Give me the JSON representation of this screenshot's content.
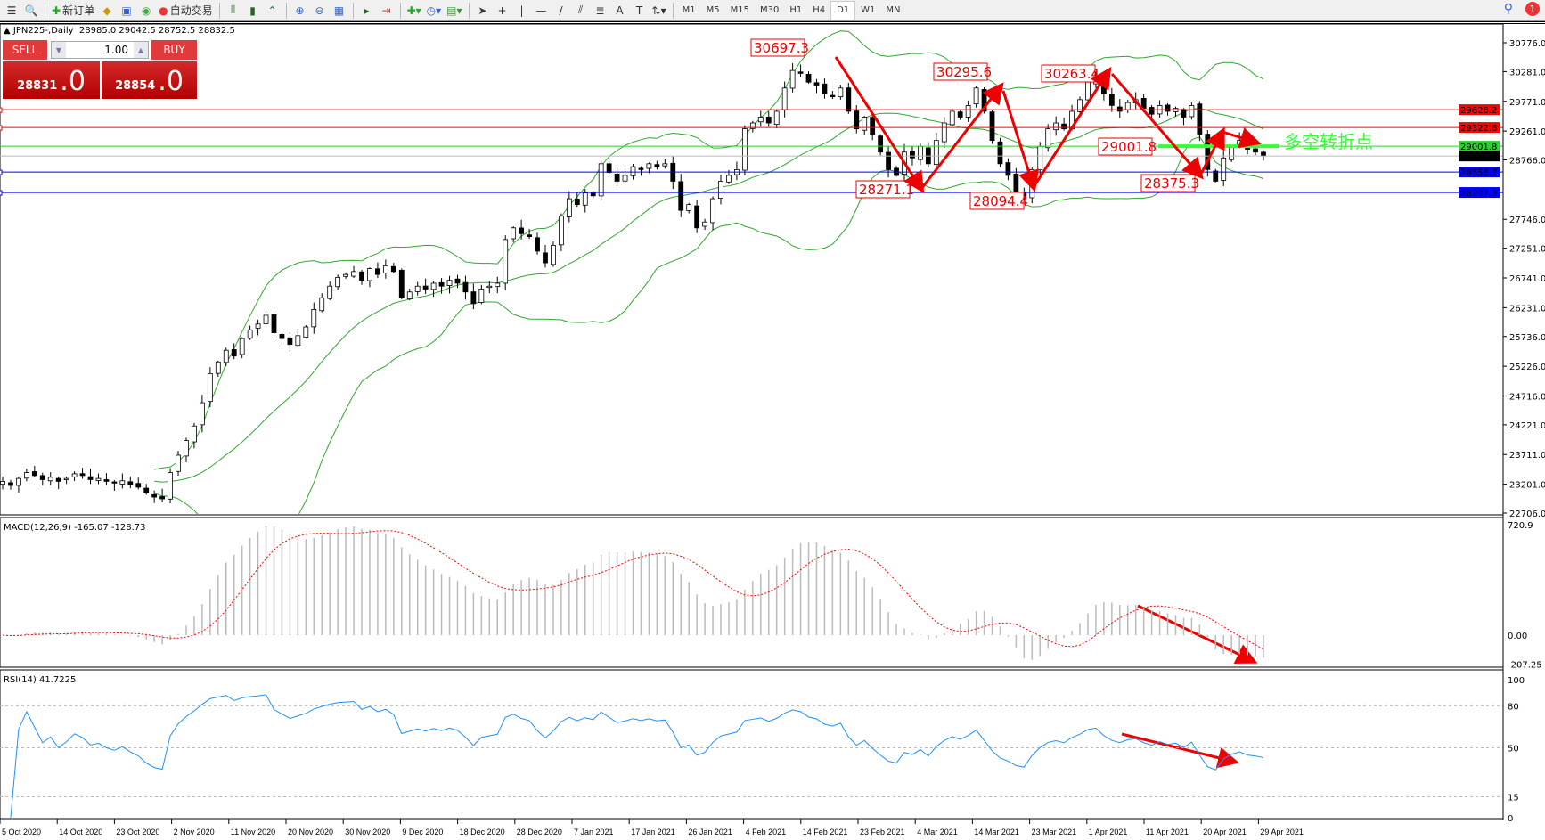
{
  "toolbar": {
    "new_order_label": "新订单",
    "auto_trading_label": "自动交易",
    "timeframes": [
      "M1",
      "M5",
      "M15",
      "M30",
      "H1",
      "H4",
      "D1",
      "W1",
      "MN"
    ],
    "active_timeframe": "D1",
    "notification_count": "1"
  },
  "chart_header": {
    "symbol": "JPN225-,Daily",
    "ohlc": "28985.0 29042.5 28752.5 28832.5"
  },
  "trade_panel": {
    "sell_label": "SELL",
    "buy_label": "BUY",
    "lot": "1.00",
    "sell_price_main": "28831",
    "sell_price_big": ".0",
    "buy_price_main": "28854",
    "buy_price_big": ".0"
  },
  "colors": {
    "bull": "#ffffff",
    "bear": "#000000",
    "bands": "#2ea82e",
    "sell": "#c80000",
    "macd_signal": "#ff0000",
    "rsi": "#1e90ff",
    "annotation": "#ff0000",
    "pivot_text": "#33ff33"
  },
  "chart_data": {
    "type": "candlestick",
    "price_axis_ticks": [
      "30776.0",
      "30281.0",
      "29771.0",
      "29261.0",
      "28766.0",
      "27746.0",
      "27251.0",
      "26741.0",
      "26231.0",
      "25736.0",
      "25226.0",
      "24716.0",
      "24221.0",
      "23711.0",
      "23201.0",
      "22706.0"
    ],
    "price_range": [
      22706,
      30776
    ],
    "date_ticks": [
      "5 Oct 2020",
      "14 Oct 2020",
      "23 Oct 2020",
      "2 Nov 2020",
      "11 Nov 2020",
      "20 Nov 2020",
      "30 Nov 2020",
      "9 Dec 2020",
      "18 Dec 2020",
      "28 Dec 2020",
      "7 Jan 2021",
      "17 Jan 2021",
      "26 Jan 2021",
      "4 Feb 2021",
      "14 Feb 2021",
      "23 Feb 2021",
      "4 Mar 2021",
      "14 Mar 2021",
      "23 Mar 2021",
      "1 Apr 2021",
      "11 Apr 2021",
      "20 Apr 2021",
      "29 Apr 2021"
    ],
    "close": [
      23250,
      23180,
      23300,
      23400,
      23350,
      23280,
      23320,
      23250,
      23300,
      23380,
      23350,
      23280,
      23300,
      23250,
      23220,
      23260,
      23200,
      23150,
      23050,
      22980,
      22950,
      23400,
      23700,
      23950,
      24200,
      24600,
      25100,
      25300,
      25500,
      25400,
      25700,
      25850,
      25950,
      26100,
      25800,
      25700,
      25600,
      25750,
      25900,
      26200,
      26400,
      26600,
      26750,
      26800,
      26850,
      26700,
      26900,
      26800,
      26950,
      26850,
      26400,
      26500,
      26600,
      26550,
      26650,
      26600,
      26700,
      26650,
      26500,
      26300,
      26550,
      26600,
      26650,
      27400,
      27600,
      27500,
      27450,
      27200,
      27000,
      27300,
      27800,
      28100,
      28000,
      28200,
      28150,
      28700,
      28550,
      28400,
      28500,
      28650,
      28600,
      28700,
      28650,
      28700,
      28400,
      27900,
      28000,
      27600,
      27700,
      28100,
      28400,
      28500,
      28600,
      29300,
      29400,
      29500,
      29400,
      29600,
      30000,
      30300,
      30250,
      30100,
      30050,
      29900,
      29850,
      30000,
      29600,
      29300,
      29500,
      29200,
      28900,
      28600,
      28500,
      28900,
      28800,
      29000,
      28700,
      29100,
      29400,
      29600,
      29500,
      29700,
      30000,
      29600,
      29100,
      28700,
      28500,
      28200,
      28100,
      28600,
      29000,
      29300,
      29400,
      29300,
      29600,
      29800,
      30100,
      30200,
      29900,
      29700,
      29600,
      29750,
      29800,
      29650,
      29550,
      29700,
      29600,
      29650,
      29500,
      29700,
      29200,
      28600,
      28400,
      28800,
      29000,
      29100,
      28950,
      28900,
      28832.5
    ],
    "levels": [
      {
        "price": 29628.2,
        "label": "29628.2",
        "color": "#ff0000"
      },
      {
        "price": 29322.6,
        "label": "29322.6",
        "color": "#ff0000"
      },
      {
        "price": 29001.8,
        "label": "29001.8",
        "color": "#33cc33"
      },
      {
        "price": 28832.5,
        "label": "28832.5",
        "color": "#000000"
      },
      {
        "price": 28558.7,
        "label": "28558.7",
        "color": "#0000ff"
      },
      {
        "price": 28207.3,
        "label": "28207.3",
        "color": "#0000ff"
      }
    ],
    "annotations": [
      "30697.3",
      "30295.6",
      "30263.4",
      "28271.1",
      "28094.4",
      "28375.3",
      "29001.8"
    ],
    "pivot_text": "多空转折点",
    "macd": {
      "label": "MACD(12,26,9) -165.07 -128.73",
      "ticks": [
        "720.9",
        "0.00",
        "-207.25"
      ],
      "range": [
        -207.25,
        720.9
      ]
    },
    "rsi": {
      "label": "RSI(14) 41.7225",
      "ticks": [
        "100",
        "80",
        "50",
        "15",
        "0"
      ],
      "range": [
        0,
        100
      ]
    }
  }
}
